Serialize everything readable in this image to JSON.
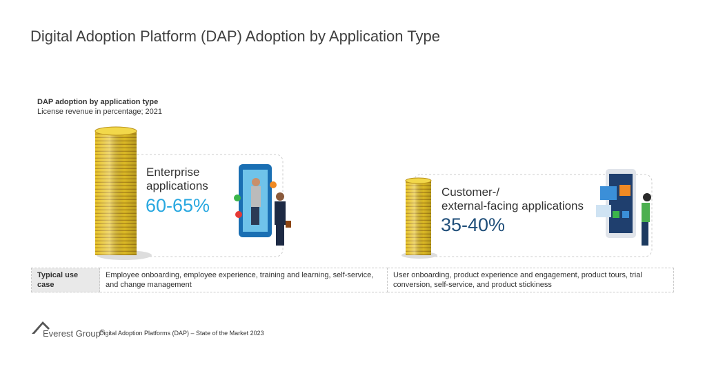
{
  "header": {
    "title": "Digital Adoption Platform (DAP) Adoption by Application Type"
  },
  "section": {
    "heading": "DAP adoption by application type",
    "subheading": "License revenue in percentage; 2021"
  },
  "segments": [
    {
      "label_lines": [
        "Enterprise",
        "applications"
      ],
      "share": "60-65%"
    },
    {
      "label_lines": [
        "Customer-/",
        "external-facing applications"
      ],
      "share": "35-40%"
    }
  ],
  "table": {
    "rows": [
      [
        "Typical use case",
        "Employee onboarding, employee experience, training and learning, self-service, and change management",
        "User onboarding, product experience and engagement, product tours, trial conversion, self-service, and product stickiness"
      ]
    ]
  },
  "footer": {
    "brand": "Everest Group",
    "mark": "®",
    "source": "Digital Adoption Platforms (DAP) – State of the Market 2023"
  }
}
